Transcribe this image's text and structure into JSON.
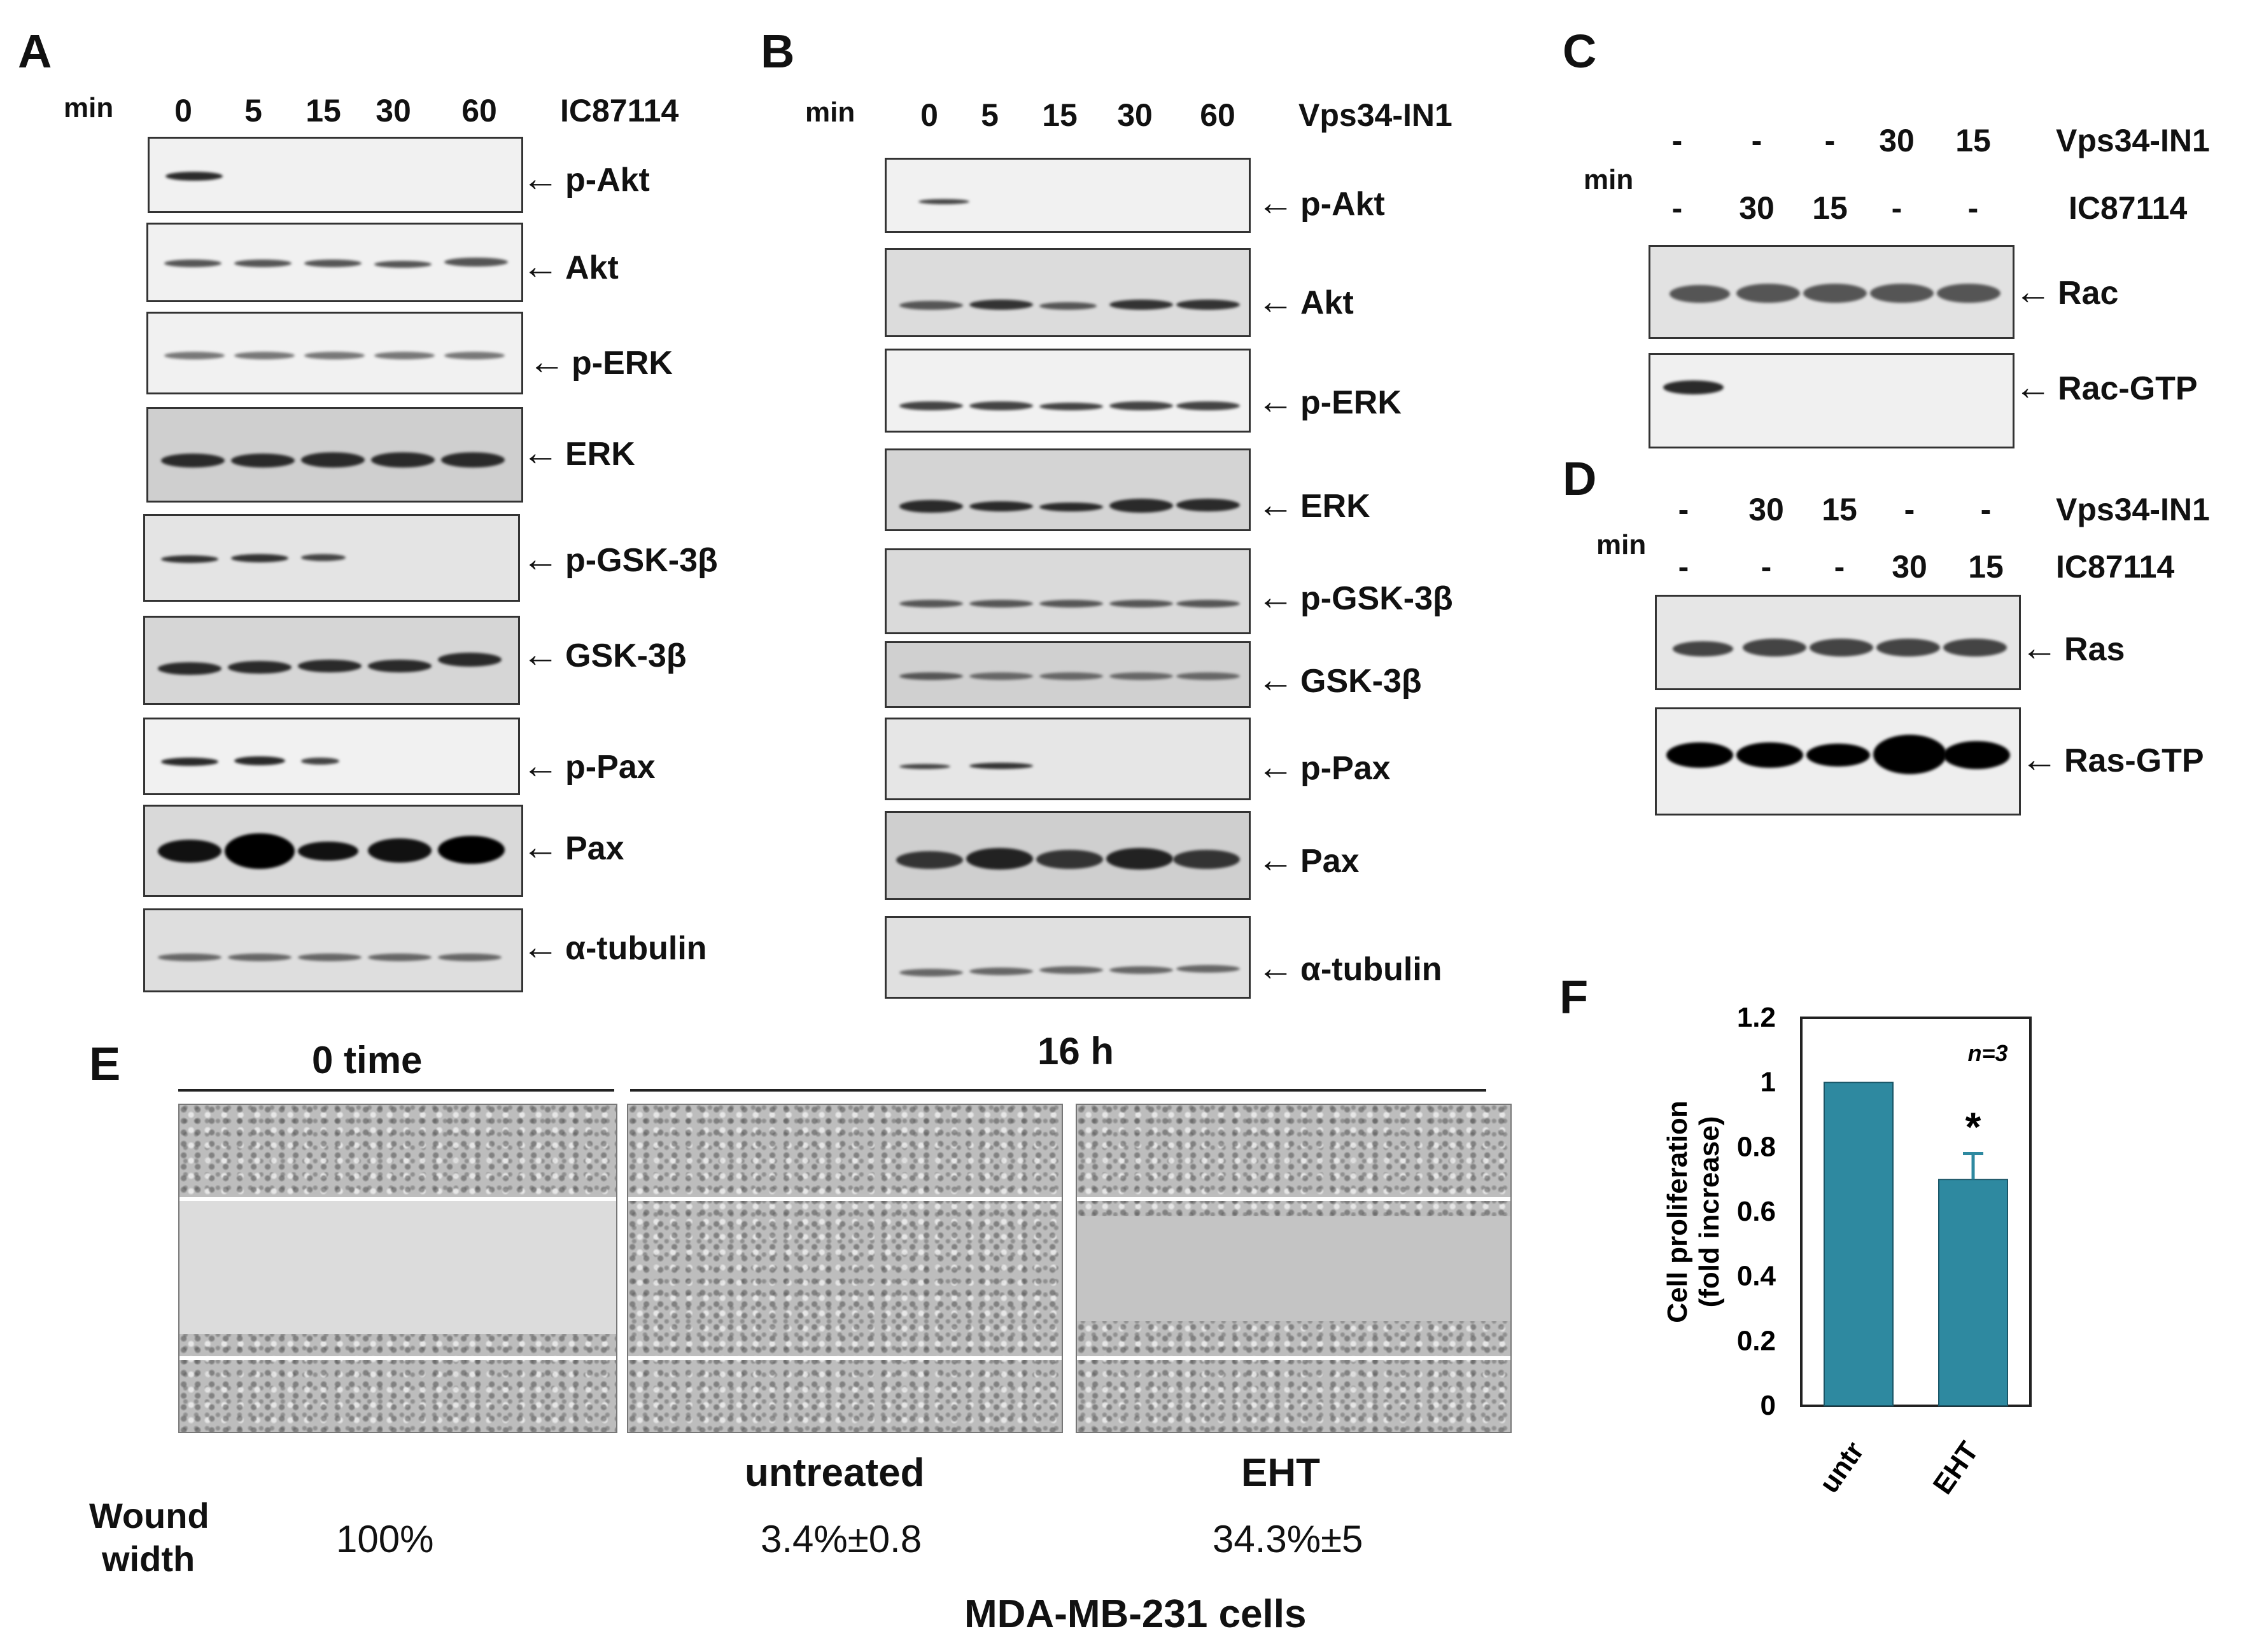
{
  "panels": {
    "A": {
      "label": "A",
      "unit": "min",
      "times": [
        "0",
        "5",
        "15",
        "30",
        "60"
      ],
      "treatment": "IC87114",
      "blots": [
        "p-Akt",
        "Akt",
        "p-ERK",
        "ERK",
        "p-GSK-3β",
        "GSK-3β",
        "p-Pax",
        "Pax",
        "α-tubulin"
      ]
    },
    "B": {
      "label": "B",
      "unit": "min",
      "times": [
        "0",
        "5",
        "15",
        "30",
        "60"
      ],
      "treatment": "Vps34-IN1",
      "blots": [
        "p-Akt",
        "Akt",
        "p-ERK",
        "ERK",
        "p-GSK-3β",
        "GSK-3β",
        "p-Pax",
        "Pax",
        "α-tubulin"
      ]
    },
    "C": {
      "label": "C",
      "unit": "min",
      "row1": {
        "values": [
          "-",
          "-",
          "-",
          "30",
          "15"
        ],
        "name": "Vps34-IN1"
      },
      "row2": {
        "values": [
          "-",
          "30",
          "15",
          "-",
          "-"
        ],
        "name": "IC87114"
      },
      "blots": [
        "Rac",
        "Rac-GTP"
      ]
    },
    "D": {
      "label": "D",
      "unit": "min",
      "row1": {
        "values": [
          "-",
          "30",
          "15",
          "-",
          "-"
        ],
        "name": "Vps34-IN1"
      },
      "row2": {
        "values": [
          "-",
          "-",
          "-",
          "30",
          "15"
        ],
        "name": "IC87114"
      },
      "blots": [
        "Ras",
        "Ras-GTP"
      ]
    },
    "E": {
      "label": "E",
      "time0": "0 time",
      "time16": "16 h",
      "col_labels": [
        "untreated",
        "EHT"
      ],
      "wound_label_1": "Wound",
      "wound_label_2": "width",
      "wound_values": [
        "100%",
        "3.4%±0.8",
        "34.3%±5"
      ],
      "caption": "MDA-MB-231 cells"
    },
    "F": {
      "label": "F"
    }
  },
  "chart_data": {
    "type": "bar",
    "categories": [
      "untr",
      "EHT"
    ],
    "values": [
      1.0,
      0.7
    ],
    "errors": [
      0,
      0.08
    ],
    "significance": [
      "",
      "*"
    ],
    "annotation": "n=3",
    "ylabel_1": "Cell proliferation",
    "ylabel_2": "(fold increase)",
    "ylim": [
      0,
      1.2
    ],
    "yticks": [
      "0",
      "0.2",
      "0.4",
      "0.6",
      "0.8",
      "1",
      "1.2"
    ],
    "bar_color": "#2e89a0"
  }
}
